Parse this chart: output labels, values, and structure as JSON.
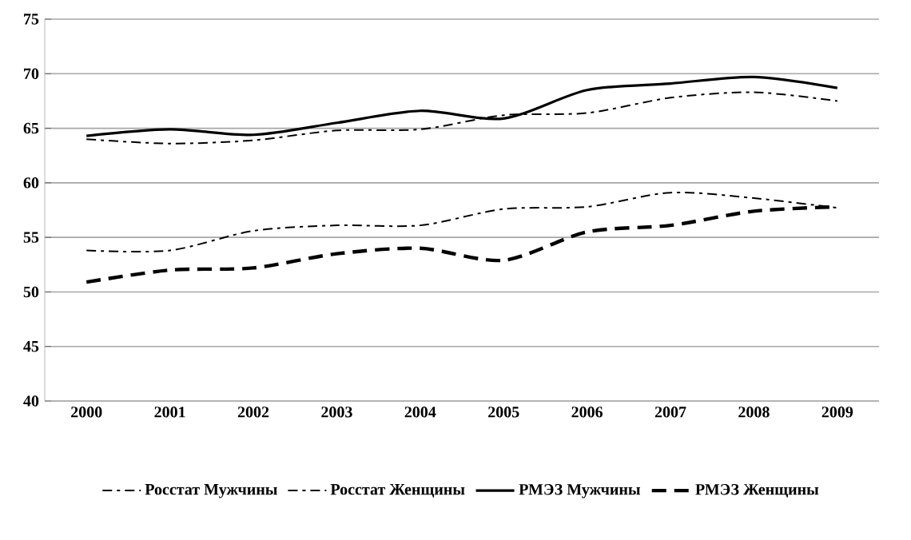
{
  "chart_data": {
    "type": "line",
    "categories": [
      "2000",
      "2001",
      "2002",
      "2003",
      "2004",
      "2005",
      "2006",
      "2007",
      "2008",
      "2009"
    ],
    "series": [
      {
        "name": "Росстат Мужчины",
        "color": "#000000",
        "line_style": "dotted",
        "values": [
          64.0,
          63.6,
          63.9,
          64.8,
          64.9,
          66.2,
          66.4,
          67.8,
          68.3,
          67.5
        ]
      },
      {
        "name": "Росстат Женщины",
        "color": "#000000",
        "line_style": "dotted",
        "values": [
          53.8,
          53.8,
          55.6,
          56.1,
          56.1,
          57.6,
          57.8,
          59.1,
          58.6,
          57.7
        ]
      },
      {
        "name": "РМЭЗ Мужчины",
        "color": "#000000",
        "line_style": "solid",
        "values": [
          64.3,
          64.9,
          64.4,
          65.5,
          66.6,
          65.9,
          68.5,
          69.1,
          69.7,
          68.7
        ]
      },
      {
        "name": "РМЭЗ Женщины",
        "color": "#000000",
        "line_style": "dashed",
        "values": [
          50.9,
          52.0,
          52.2,
          53.5,
          54.0,
          52.9,
          55.5,
          56.1,
          57.4,
          57.8
        ]
      }
    ],
    "ylim": [
      40,
      75
    ],
    "yticks": [
      40,
      45,
      50,
      55,
      60,
      65,
      70,
      75
    ],
    "grid": "y",
    "legend": "bottom",
    "marker": "none"
  }
}
